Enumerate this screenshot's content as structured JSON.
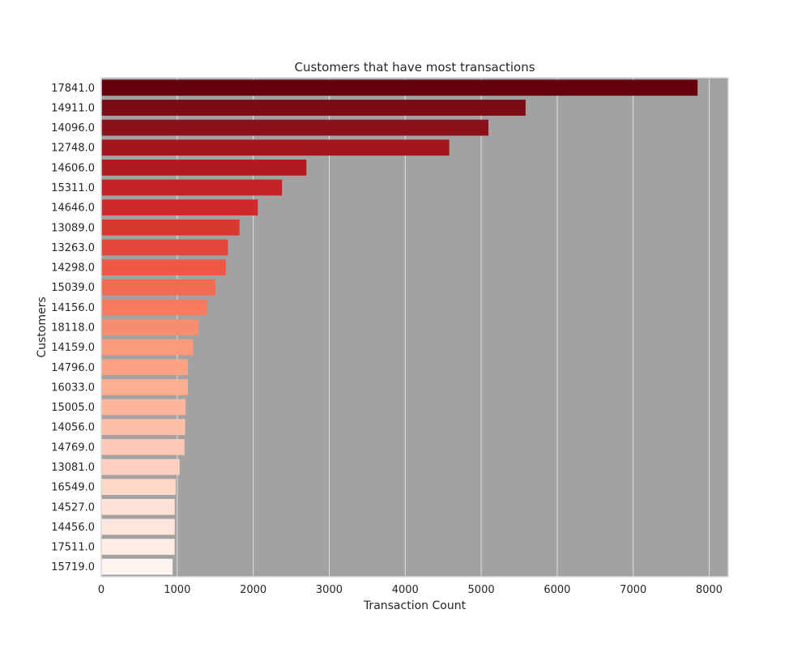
{
  "chart_data": {
    "type": "bar",
    "orientation": "horizontal",
    "title": "Customers that have most transactions",
    "xlabel": "Transaction Count",
    "ylabel": "Customers",
    "xlim": [
      0,
      8250
    ],
    "xticks": [
      0,
      1000,
      2000,
      3000,
      4000,
      5000,
      6000,
      7000,
      8000
    ],
    "grid": true,
    "plot_background": "#a2a2a2",
    "grid_color": "#e0e0e0",
    "categories": [
      "17841.0",
      "14911.0",
      "14096.0",
      "12748.0",
      "14606.0",
      "15311.0",
      "14646.0",
      "13089.0",
      "13263.0",
      "14298.0",
      "15039.0",
      "14156.0",
      "18118.0",
      "14159.0",
      "14796.0",
      "16033.0",
      "15005.0",
      "14056.0",
      "14769.0",
      "13081.0",
      "16549.0",
      "14527.0",
      "14456.0",
      "17511.0",
      "15719.0"
    ],
    "values": [
      7847,
      5584,
      5095,
      4580,
      2700,
      2379,
      2060,
      1819,
      1667,
      1640,
      1502,
      1390,
      1280,
      1208,
      1142,
      1141,
      1110,
      1104,
      1095,
      1031,
      980,
      967,
      967,
      965,
      939
    ],
    "colors": [
      "#67000d",
      "#7b0c15",
      "#8c111a",
      "#a2161c",
      "#b11a1e",
      "#c32228",
      "#ce2a2b",
      "#d9382f",
      "#e4473a",
      "#ef5845",
      "#f26a50",
      "#f57a5f",
      "#f88c6e",
      "#fb9b7c",
      "#fca386",
      "#fcae92",
      "#fcb69e",
      "#fcc0a9",
      "#fdc8b5",
      "#fdd0bf",
      "#fed8c9",
      "#fee1d5",
      "#fee6dd",
      "#ffece4",
      "#fff3ef"
    ]
  }
}
